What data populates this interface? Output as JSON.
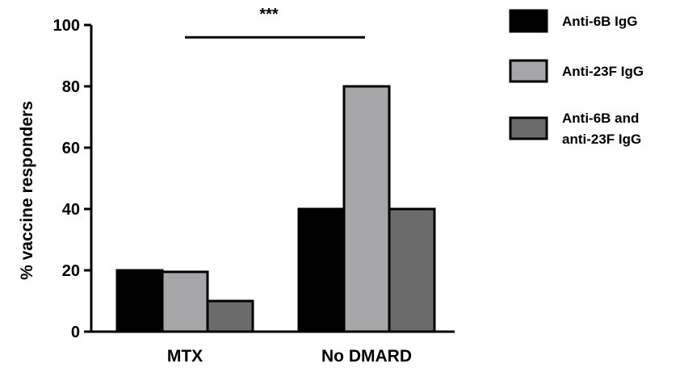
{
  "chart_data": {
    "type": "bar",
    "ylabel": "% vaccine responders",
    "xlabel": "",
    "ylim": [
      0,
      100
    ],
    "yticks": [
      0,
      20,
      40,
      60,
      80,
      100
    ],
    "categories": [
      "MTX",
      "No DMARD"
    ],
    "series": [
      {
        "name": "Anti-6B IgG",
        "values": [
          20,
          40
        ],
        "color": "#000000"
      },
      {
        "name": "Anti-23F IgG",
        "values": [
          19.5,
          80
        ],
        "color": "#a6a6a8"
      },
      {
        "name": "Anti-6B and anti-23F IgG",
        "values": [
          10,
          40
        ],
        "color": "#6b6b6b"
      }
    ],
    "legend": {
      "placement": "right",
      "entries": [
        {
          "lines": [
            "Anti-6B IgG"
          ]
        },
        {
          "lines": [
            "Anti-23F IgG"
          ]
        },
        {
          "lines": [
            "Anti-6B and",
            "anti-23F IgG"
          ]
        }
      ]
    },
    "annotations": [
      {
        "type": "significance-bar",
        "label": "***",
        "from_category": "MTX",
        "to_category": "No DMARD",
        "y": 96
      }
    ],
    "grid": false
  }
}
